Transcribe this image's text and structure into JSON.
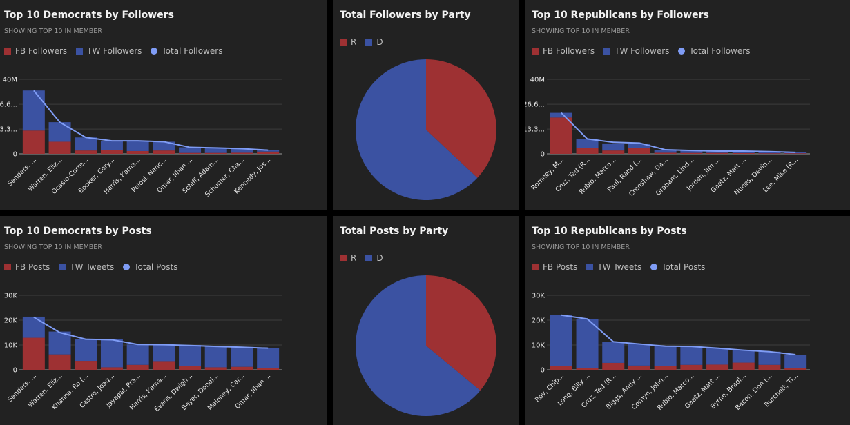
{
  "colors": {
    "fb": "#9e3133",
    "tw": "#3b52a2",
    "total": "#7f9cf5",
    "R": "#9e3133",
    "D": "#3b52a2"
  },
  "panels": {
    "dem_followers": {
      "title": "Top 10 Democrats by Followers",
      "subtitle": "SHOWING TOP 10 IN MEMBER",
      "legend": [
        "FB Followers",
        "TW Followers",
        "Total Followers"
      ]
    },
    "party_followers": {
      "title": "Total Followers by Party",
      "legend": [
        "R",
        "D"
      ]
    },
    "rep_followers": {
      "title": "Top 10 Republicans by Followers",
      "subtitle": "SHOWING TOP 10 IN MEMBER",
      "legend": [
        "FB Followers",
        "TW Followers",
        "Total Followers"
      ]
    },
    "dem_posts": {
      "title": "Top 10 Democrats by Posts",
      "subtitle": "SHOWING TOP 10 IN MEMBER",
      "legend": [
        "FB Posts",
        "TW Tweets",
        "Total Posts"
      ]
    },
    "party_posts": {
      "title": "Total Posts by Party",
      "legend": [
        "R",
        "D"
      ]
    },
    "rep_posts": {
      "title": "Top 10 Republicans by Posts",
      "subtitle": "SHOWING TOP 10 IN MEMBER",
      "legend": [
        "FB Posts",
        "TW Tweets",
        "Total Posts"
      ]
    }
  },
  "chart_data": [
    {
      "type": "bar",
      "title": "Top 10 Democrats by Followers",
      "stacked": true,
      "categories": [
        "Sanders, ...",
        "Warren, Eliz...",
        "Ocasio-Corte...",
        "Booker, Cory...",
        "Harris, Kama...",
        "Pelosi, Nanc...",
        "Omar, Ilhan ...",
        "Schiff, Adam...",
        "Schumer, Cha...",
        "Kennedy, Jos..."
      ],
      "series": [
        {
          "name": "FB Followers",
          "kind": "bar",
          "values": [
            12.5,
            6.5,
            1.8,
            2.0,
            1.5,
            1.8,
            0.5,
            0.5,
            0.6,
            1.2
          ]
        },
        {
          "name": "TW Followers",
          "kind": "bar",
          "values": [
            21.5,
            10.5,
            7.0,
            5.0,
            5.5,
            4.7,
            3.0,
            2.7,
            2.2,
            0.8
          ]
        },
        {
          "name": "Total Followers",
          "kind": "line",
          "values": [
            34,
            17,
            8.8,
            7,
            7,
            6.5,
            3.5,
            3.2,
            2.8,
            2.0
          ]
        }
      ],
      "yticks": [
        0,
        13.3,
        26.6,
        40
      ],
      "ytick_labels": [
        "0",
        "13.3...",
        "26.6...",
        "40M"
      ],
      "ylim": [
        0,
        40
      ]
    },
    {
      "type": "pie",
      "title": "Total Followers by Party",
      "categories": [
        "R",
        "D"
      ],
      "values": [
        37,
        63
      ]
    },
    {
      "type": "bar",
      "title": "Top 10 Republicans by Followers",
      "stacked": true,
      "categories": [
        "Romney, M...",
        "Cruz, Ted (R...",
        "Rubio, Marco...",
        "Paul, Rand (...",
        "Crenshaw, Da...",
        "Graham, Lind...",
        "Jordan, Jim ...",
        "Gaetz, Matt ...",
        "Nunes, Devin...",
        "Lee, Mike (R..."
      ],
      "series": [
        {
          "name": "FB Followers",
          "kind": "bar",
          "values": [
            19.5,
            3.0,
            1.8,
            3.0,
            0.6,
            0.5,
            0.5,
            0.4,
            0.3,
            0.3
          ]
        },
        {
          "name": "TW Followers",
          "kind": "bar",
          "values": [
            2.5,
            5.0,
            3.8,
            2.5,
            1.4,
            1.2,
            1.0,
            1.0,
            0.9,
            0.6
          ]
        },
        {
          "name": "Total Followers",
          "kind": "line",
          "values": [
            22,
            8,
            6.2,
            5.8,
            2.2,
            1.8,
            1.5,
            1.5,
            1.2,
            0.8
          ]
        }
      ],
      "yticks": [
        0,
        13.3,
        26.6,
        40
      ],
      "ytick_labels": [
        "0",
        "13.3...",
        "26.6...",
        "40M"
      ],
      "ylim": [
        0,
        40
      ]
    },
    {
      "type": "bar",
      "title": "Top 10 Democrats by Posts",
      "stacked": true,
      "categories": [
        "Sanders, ...",
        "Warren, Eliz...",
        "Khanna, Ro (...",
        "Castro, Joaq...",
        "Jayapal, Pra...",
        "Harris, Kama...",
        "Evans, Dwigh...",
        "Beyer, Donal...",
        "Maloney, Car...",
        "Omar, Ilhan ..."
      ],
      "series": [
        {
          "name": "FB Posts",
          "kind": "bar",
          "values": [
            12900,
            6200,
            3600,
            1000,
            2000,
            3500,
            1500,
            1000,
            1200,
            700
          ]
        },
        {
          "name": "TW Tweets",
          "kind": "bar",
          "values": [
            8500,
            9200,
            8800,
            11400,
            8200,
            6600,
            8500,
            8700,
            8000,
            8000
          ]
        },
        {
          "name": "Total Posts",
          "kind": "line",
          "values": [
            21200,
            15000,
            12300,
            12100,
            10200,
            10100,
            9800,
            9400,
            9100,
            8700
          ]
        }
      ],
      "yticks": [
        0,
        10000,
        20000,
        30000
      ],
      "ytick_labels": [
        "0",
        "10K",
        "20K",
        "30K"
      ],
      "ylim": [
        0,
        30000
      ]
    },
    {
      "type": "pie",
      "title": "Total Posts by Party",
      "categories": [
        "R",
        "D"
      ],
      "values": [
        36,
        64
      ]
    },
    {
      "type": "bar",
      "title": "Top 10 Republicans by Posts",
      "stacked": true,
      "categories": [
        "Roy, Chip...",
        "Long, Billy ...",
        "Cruz, Ted (R...",
        "Biggs, Andy ...",
        "Cornyn, John...",
        "Rubio, Marco...",
        "Gaetz, Matt ...",
        "Byrne, Bradl...",
        "Bacon, Don (...",
        "Burchett, Ti..."
      ],
      "series": [
        {
          "name": "FB Posts",
          "kind": "bar",
          "values": [
            1500,
            600,
            2800,
            1700,
            1600,
            2000,
            2100,
            2900,
            2000,
            600
          ]
        },
        {
          "name": "TW Tweets",
          "kind": "bar",
          "values": [
            20600,
            19900,
            8500,
            8700,
            8000,
            7500,
            6800,
            5000,
            5300,
            5500
          ]
        },
        {
          "name": "Total Posts",
          "kind": "line",
          "values": [
            22000,
            20500,
            11300,
            10400,
            9500,
            9400,
            8700,
            7900,
            7300,
            6100
          ]
        }
      ],
      "yticks": [
        0,
        10000,
        20000,
        30000
      ],
      "ytick_labels": [
        "0",
        "10K",
        "20K",
        "30K"
      ],
      "ylim": [
        0,
        30000
      ]
    }
  ]
}
